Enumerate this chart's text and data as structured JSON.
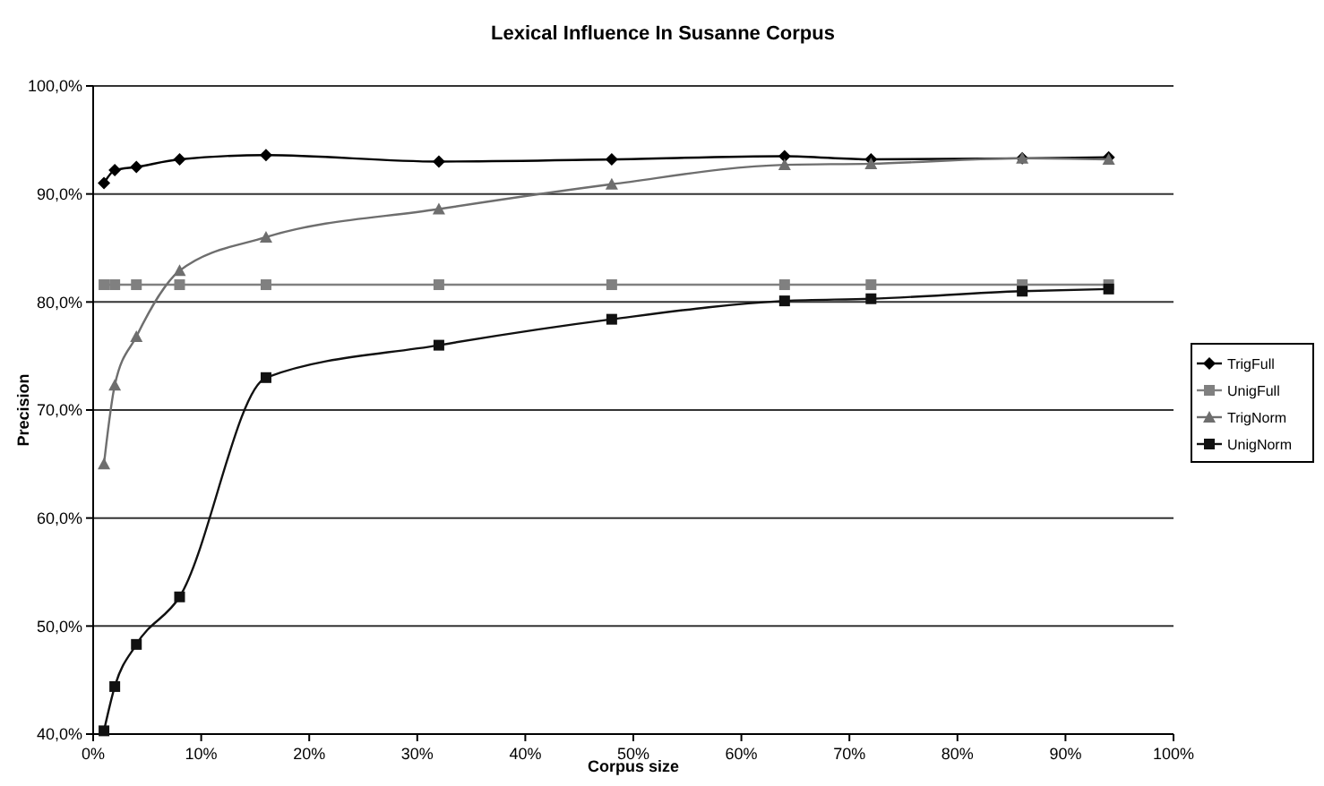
{
  "chart_data": {
    "type": "line",
    "title": "Lexical Influence In Susanne Corpus",
    "xlabel": "Corpus size",
    "ylabel": "Precision",
    "x": [
      1,
      2,
      4,
      8,
      16,
      32,
      48,
      64,
      72,
      86,
      94
    ],
    "series": [
      {
        "name": "TrigFull",
        "color": "#000000",
        "marker": "diamond",
        "values": [
          91.0,
          92.2,
          92.5,
          93.2,
          93.6,
          93.0,
          93.2,
          93.5,
          93.2,
          93.3,
          93.4
        ]
      },
      {
        "name": "UnigFull",
        "color": "#808080",
        "marker": "square",
        "values": [
          81.6,
          81.6,
          81.6,
          81.6,
          81.6,
          81.6,
          81.6,
          81.6,
          81.6,
          81.6,
          81.6
        ]
      },
      {
        "name": "TrigNorm",
        "color": "#6e6e6e",
        "marker": "triangle",
        "values": [
          65.0,
          72.3,
          76.8,
          82.9,
          86.0,
          88.6,
          90.9,
          92.7,
          92.8,
          93.3,
          93.2
        ]
      },
      {
        "name": "UnigNorm",
        "color": "#111111",
        "marker": "square",
        "values": [
          40.3,
          44.4,
          48.3,
          52.7,
          73.0,
          76.0,
          78.4,
          80.1,
          80.3,
          81.0,
          81.2
        ]
      }
    ],
    "xlim": [
      0,
      100
    ],
    "xticks": [
      {
        "value": 0,
        "label": "0%"
      },
      {
        "value": 10,
        "label": "10%"
      },
      {
        "value": 20,
        "label": "20%"
      },
      {
        "value": 30,
        "label": "30%"
      },
      {
        "value": 40,
        "label": "40%"
      },
      {
        "value": 50,
        "label": "50%"
      },
      {
        "value": 60,
        "label": "60%"
      },
      {
        "value": 70,
        "label": "70%"
      },
      {
        "value": 80,
        "label": "80%"
      },
      {
        "value": 90,
        "label": "90%"
      },
      {
        "value": 100,
        "label": "100%"
      }
    ],
    "ylim": [
      40,
      100
    ],
    "yticks": [
      {
        "value": 40,
        "label": "40,0%"
      },
      {
        "value": 50,
        "label": "50,0%"
      },
      {
        "value": 60,
        "label": "60,0%"
      },
      {
        "value": 70,
        "label": "70,0%"
      },
      {
        "value": 80,
        "label": "80,0%"
      },
      {
        "value": 90,
        "label": "90,0%"
      },
      {
        "value": 100,
        "label": "100,0%"
      }
    ],
    "grid": "y",
    "legend": "right"
  }
}
